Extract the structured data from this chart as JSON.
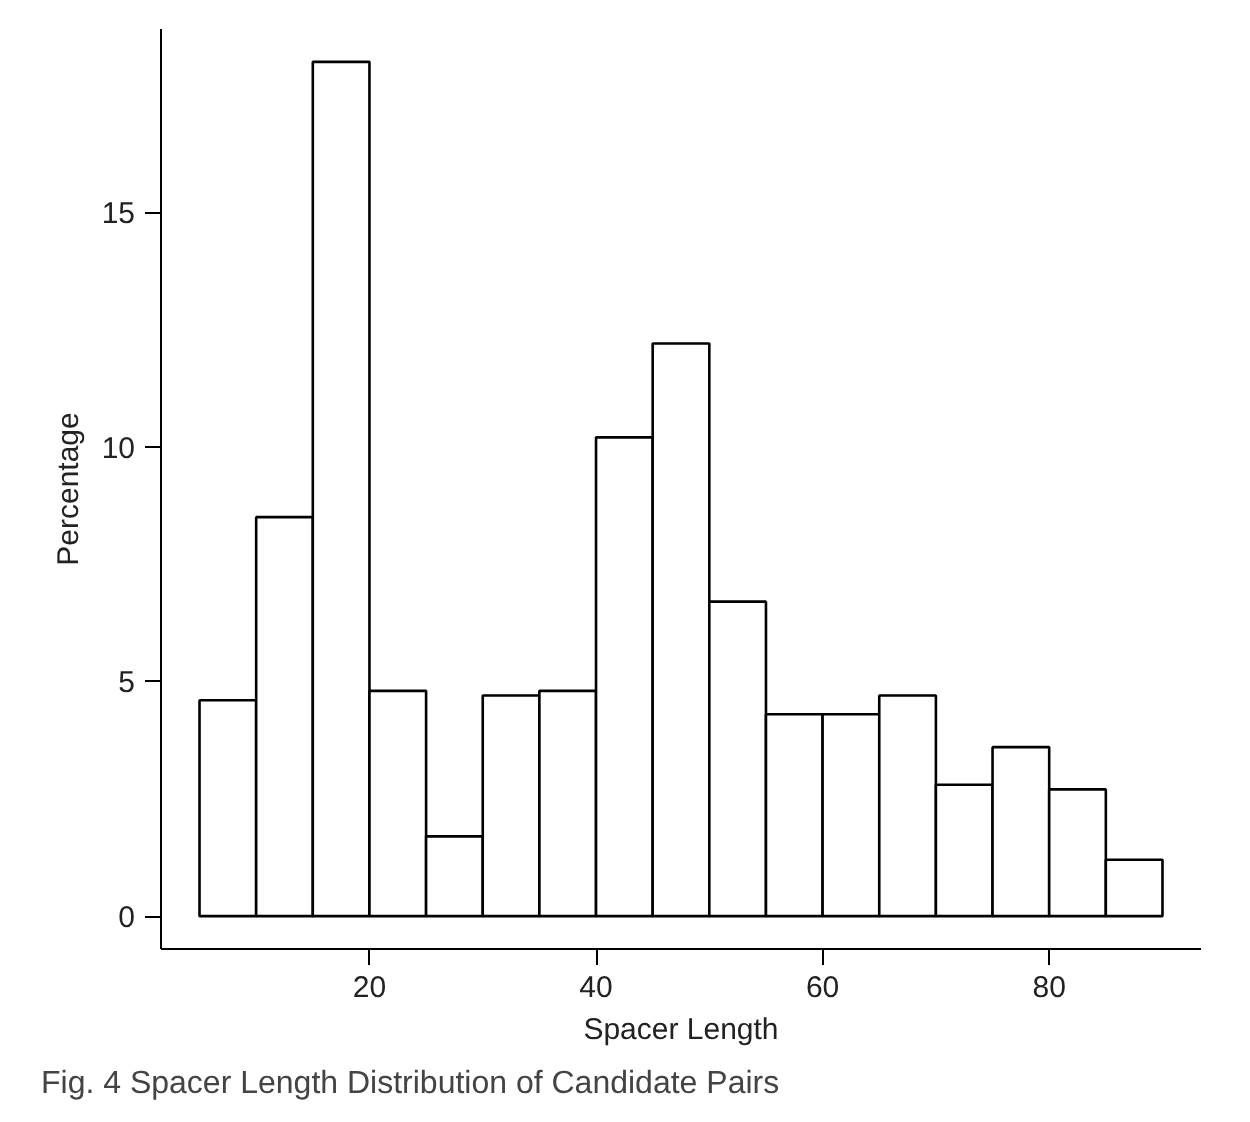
{
  "chart_data": {
    "type": "histogram",
    "xlabel": "Spacer Length",
    "ylabel": "Percentage",
    "bins": [
      5,
      10,
      15,
      20,
      25,
      30,
      35,
      40,
      45,
      50,
      55,
      60,
      65,
      70,
      75,
      80,
      85,
      90
    ],
    "values": [
      4.6,
      8.5,
      18.2,
      4.8,
      1.7,
      4.7,
      4.8,
      10.2,
      12.2,
      6.7,
      4.3,
      4.3,
      4.7,
      2.8,
      3.6,
      2.7,
      1.2
    ],
    "color": "#ffffff",
    "xlim": [
      1.6,
      93.4
    ],
    "ylim": [
      -0.7,
      18.9
    ],
    "xticks": [
      20,
      40,
      60,
      80
    ],
    "yticks": [
      0,
      5,
      10,
      15
    ],
    "grid": false,
    "annotations": [
      "Fig. 4 Spacer Length Distribution of Candidate Pairs"
    ]
  }
}
